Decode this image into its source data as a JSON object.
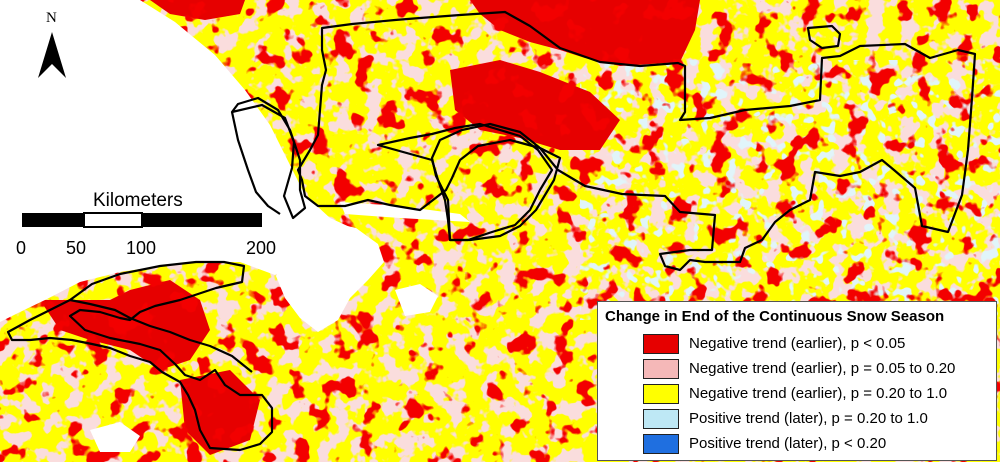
{
  "north_arrow": {
    "letter": "N"
  },
  "scale_bar": {
    "title": "Kilometers",
    "labels": [
      "0",
      "50",
      "100",
      "200"
    ]
  },
  "legend": {
    "title": "Change in End of the Continuous Snow Season",
    "items": [
      {
        "label": "Negative trend (earlier), p < 0.05",
        "color": "#e60000"
      },
      {
        "label": "Negative trend (earlier), p = 0.05 to 0.20",
        "color": "#f5b8b8"
      },
      {
        "label": "Negative trend (earlier), p = 0.20  to 1.0",
        "color": "#ffff00"
      },
      {
        "label": "Positive trend (later), p = 0.20 to 1.0",
        "color": "#bee8f5"
      },
      {
        "label": "Positive trend (later), p < 0.20",
        "color": "#1f6fe0"
      }
    ]
  },
  "colors": {
    "water": "#ffffff",
    "land_base": "#ffff00",
    "boundary": "#000000"
  }
}
